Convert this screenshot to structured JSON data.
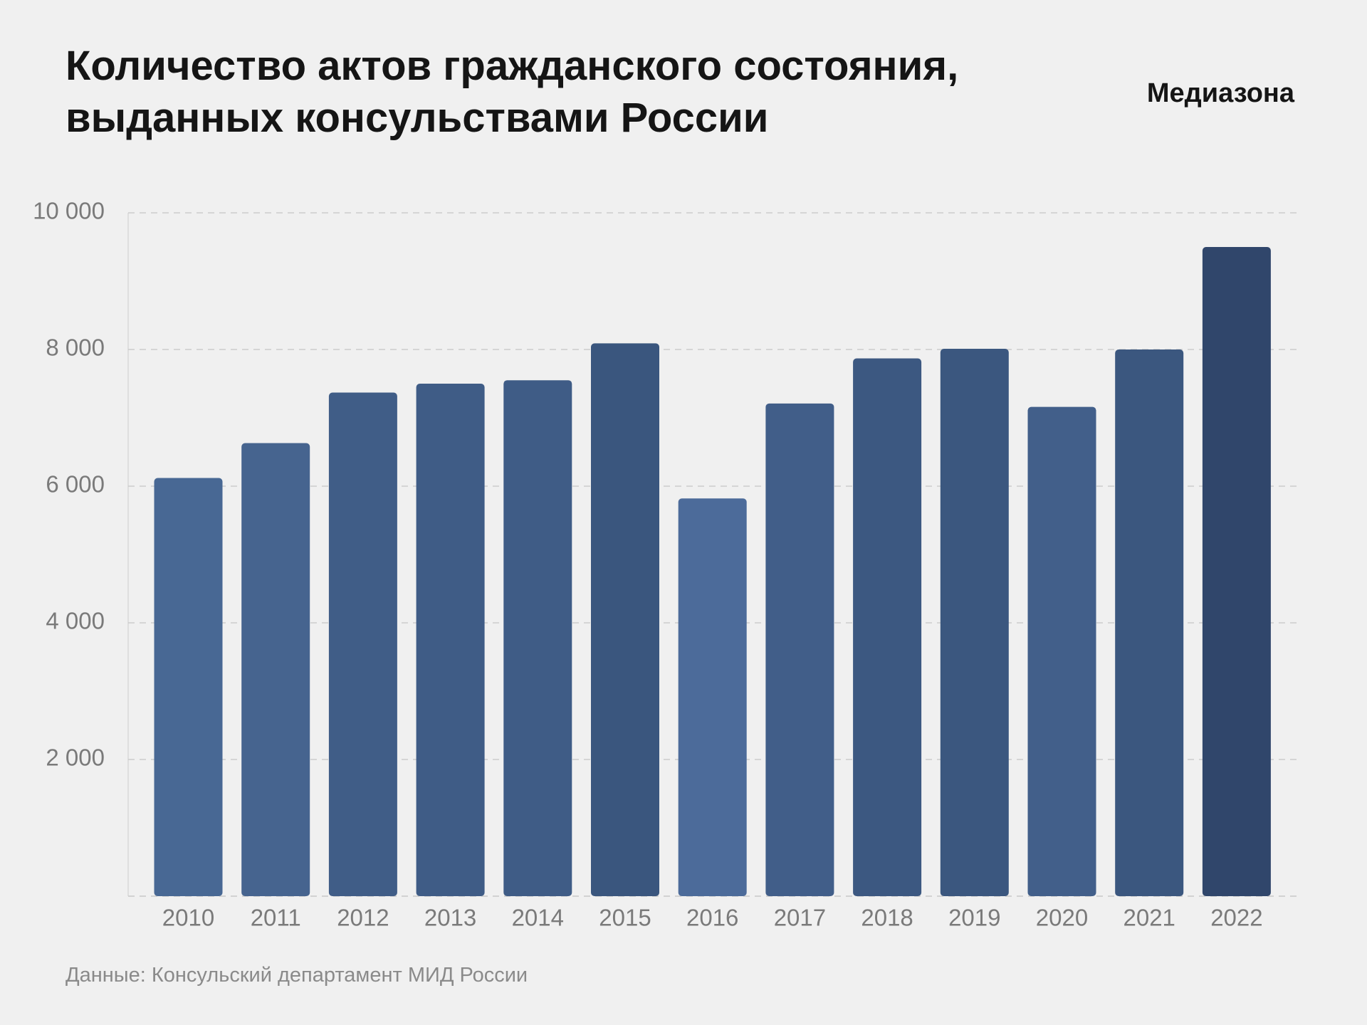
{
  "chart_data": {
    "type": "bar",
    "title": [
      "Количество актов гражданского состояния,",
      "выданных консульствами России"
    ],
    "brand": "Медиазона",
    "source": "Данные: Консульский департамент МИД России",
    "categories": [
      "2010",
      "2011",
      "2012",
      "2013",
      "2014",
      "2015",
      "2016",
      "2017",
      "2018",
      "2019",
      "2020",
      "2021",
      "2022"
    ],
    "values": [
      6120,
      6630,
      7370,
      7500,
      7550,
      8090,
      5820,
      7210,
      7870,
      8010,
      7160,
      8000,
      9500
    ],
    "colors": [
      "#486894",
      "#46648f",
      "#405d87",
      "#3f5c86",
      "#3f5c86",
      "#3a567e",
      "#4c6b9a",
      "#415e89",
      "#3c5881",
      "#3b577f",
      "#425f8a",
      "#3b577f",
      "#30466b"
    ],
    "ylim": [
      0,
      10000
    ],
    "yticks": [
      {
        "value": 2000,
        "label": "2 000"
      },
      {
        "value": 4000,
        "label": "4 000"
      },
      {
        "value": 6000,
        "label": "6 000"
      },
      {
        "value": 8000,
        "label": "8 000"
      },
      {
        "value": 10000,
        "label": "10 000"
      }
    ],
    "grid": true
  }
}
